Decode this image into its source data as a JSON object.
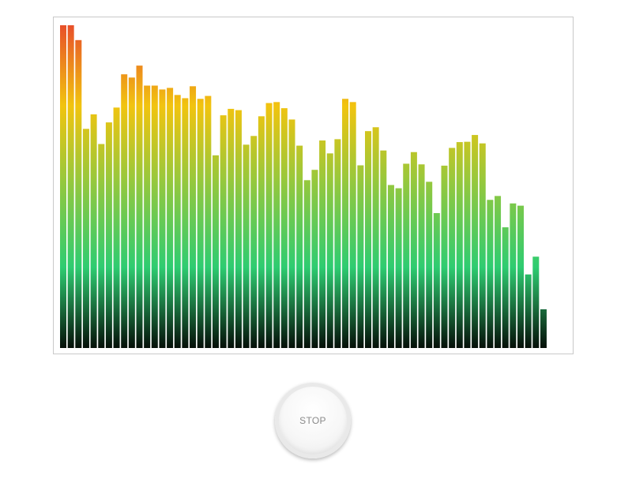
{
  "visualizer": {
    "levels": [
      1.0,
      1.0,
      0.954,
      0.679,
      0.724,
      0.632,
      0.699,
      0.745,
      0.848,
      0.838,
      0.875,
      0.813,
      0.813,
      0.801,
      0.806,
      0.784,
      0.774,
      0.811,
      0.772,
      0.781,
      0.597,
      0.721,
      0.741,
      0.737,
      0.63,
      0.657,
      0.718,
      0.759,
      0.762,
      0.743,
      0.708,
      0.627,
      0.52,
      0.552,
      0.643,
      0.603,
      0.647,
      0.772,
      0.762,
      0.566,
      0.672,
      0.684,
      0.612,
      0.505,
      0.495,
      0.571,
      0.607,
      0.569,
      0.515,
      0.418,
      0.565,
      0.62,
      0.638,
      0.639,
      0.66,
      0.634,
      0.459,
      0.471,
      0.374,
      0.448,
      0.441,
      0.228,
      0.283,
      0.12
    ],
    "colors": {
      "peak": "#e8502a",
      "high": "#f1c40f",
      "mid": "#2ecc71",
      "low": "#050f08"
    }
  },
  "controls": {
    "stop_label": "STOP"
  }
}
